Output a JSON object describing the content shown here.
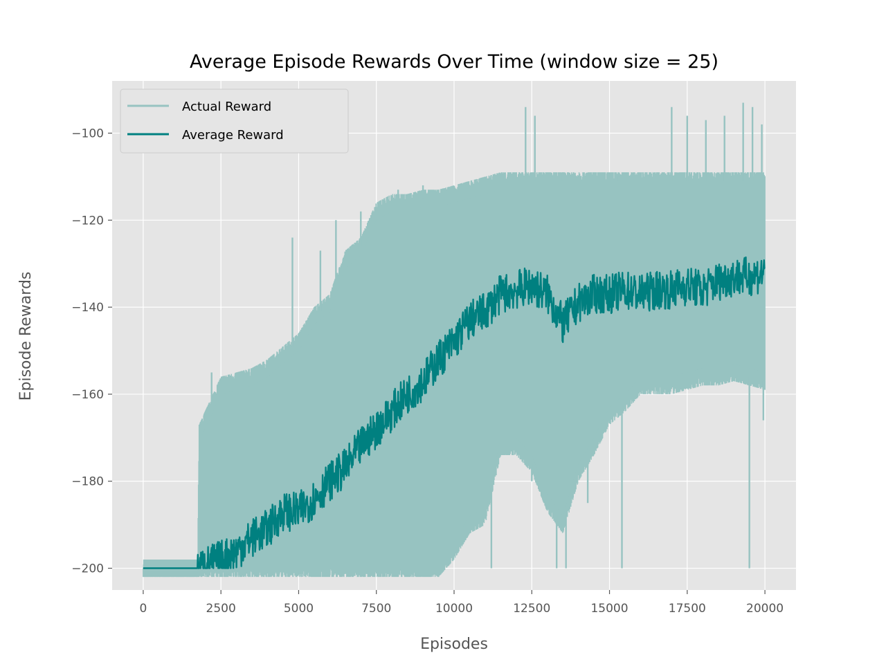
{
  "chart_data": {
    "type": "line",
    "title": "Average Episode Rewards Over Time (window size = 25)",
    "xlabel": "Episodes",
    "ylabel": "Episode Rewards",
    "xlim": [
      -1000,
      21000
    ],
    "ylim": [
      -205,
      -88
    ],
    "x_ticks": [
      0,
      2500,
      5000,
      7500,
      10000,
      12500,
      15000,
      17500,
      20000
    ],
    "x_tick_labels": [
      "0",
      "2500",
      "5000",
      "7500",
      "10000",
      "12500",
      "15000",
      "17500",
      "20000"
    ],
    "y_ticks": [
      -200,
      -180,
      -160,
      -140,
      -120,
      -100
    ],
    "y_tick_labels": [
      "−200",
      "−180",
      "−160",
      "−140",
      "−120",
      "−100"
    ],
    "grid": true,
    "legend_position": "top-left",
    "series": [
      {
        "name": "Actual Reward",
        "color": "#97c3c1",
        "x": [
          0,
          1750,
          1800,
          2500,
          3000,
          3500,
          4000,
          4500,
          5000,
          5500,
          6000,
          6500,
          7000,
          7500,
          8000,
          8500,
          9000,
          9500,
          10000,
          10500,
          11000,
          11500,
          12000,
          12500,
          13000,
          13500,
          14000,
          14500,
          15000,
          15500,
          16000,
          16500,
          17000,
          17500,
          18000,
          18500,
          19000,
          19500,
          20000
        ],
        "upper": [
          -200,
          -200,
          -169,
          -158,
          -157,
          -156,
          -154,
          -151,
          -148,
          -142,
          -139,
          -129,
          -126,
          -118,
          -116,
          -116,
          -115,
          -115,
          -114,
          -113,
          -112,
          -111,
          -111,
          -111,
          -111,
          -111,
          -111,
          -111,
          -111,
          -111,
          -111,
          -111,
          -111,
          -111,
          -111,
          -111,
          -111,
          -111,
          -111
        ],
        "lower": [
          -200,
          -200,
          -200,
          -200,
          -200,
          -200,
          -200,
          -200,
          -200,
          -200,
          -200,
          -200,
          -200,
          -200,
          -200,
          -200,
          -200,
          -200,
          -196,
          -190,
          -188,
          -172,
          -172,
          -176,
          -185,
          -190,
          -178,
          -172,
          -165,
          -162,
          -158,
          -158,
          -158,
          -157,
          -156,
          -156,
          -155,
          -156,
          -157
        ],
        "spikes_up": [
          [
            2200,
            -155
          ],
          [
            4800,
            -124
          ],
          [
            5700,
            -127
          ],
          [
            6200,
            -120
          ],
          [
            7000,
            -118
          ],
          [
            8200,
            -113
          ],
          [
            9000,
            -112
          ],
          [
            12300,
            -94
          ],
          [
            12600,
            -96
          ],
          [
            13500,
            -109
          ],
          [
            15300,
            -110
          ],
          [
            17000,
            -94
          ],
          [
            17500,
            -96
          ],
          [
            18100,
            -97
          ],
          [
            18700,
            -96
          ],
          [
            19300,
            -93
          ],
          [
            19600,
            -94
          ],
          [
            19900,
            -98
          ]
        ],
        "spikes_down": [
          [
            11200,
            -200
          ],
          [
            12500,
            -180
          ],
          [
            13300,
            -200
          ],
          [
            13600,
            -200
          ],
          [
            14300,
            -185
          ],
          [
            15400,
            -200
          ],
          [
            19500,
            -200
          ],
          [
            19950,
            -166
          ]
        ]
      },
      {
        "name": "Average Reward",
        "color": "#008080",
        "x": [
          0,
          1750,
          2500,
          3000,
          3500,
          4000,
          4500,
          5000,
          5500,
          6000,
          6500,
          7000,
          7500,
          8000,
          8500,
          9000,
          9500,
          10000,
          10500,
          11000,
          11500,
          12000,
          12500,
          13000,
          13500,
          14000,
          14500,
          15000,
          15500,
          16000,
          16500,
          17000,
          17500,
          18000,
          18500,
          19000,
          19500,
          20000
        ],
        "y": [
          -200,
          -200,
          -198,
          -196,
          -193,
          -191,
          -187,
          -187,
          -184,
          -180,
          -177,
          -172,
          -168,
          -164,
          -160,
          -157,
          -152,
          -148,
          -143,
          -141,
          -137,
          -136,
          -135,
          -137,
          -144,
          -139,
          -137,
          -137,
          -136,
          -137,
          -136,
          -136,
          -135,
          -136,
          -134,
          -133,
          -133,
          -132
        ]
      }
    ]
  }
}
